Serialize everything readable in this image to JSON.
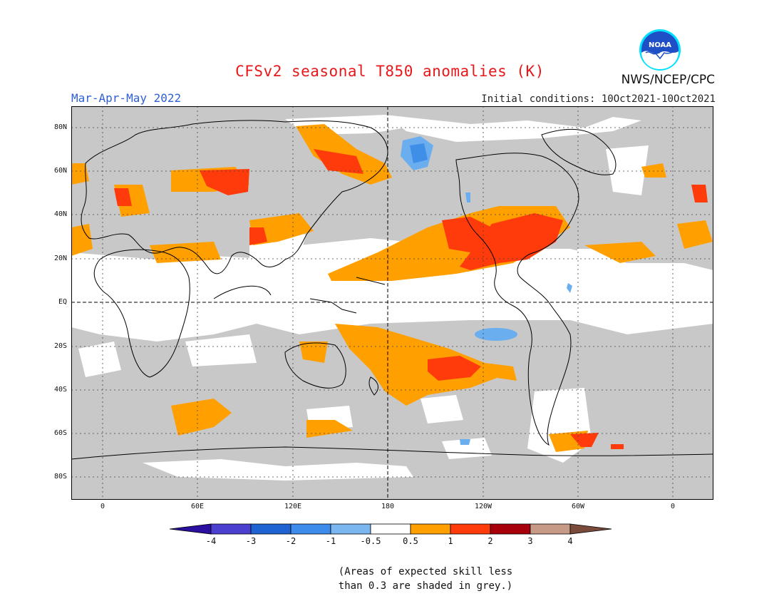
{
  "header": {
    "title": "CFSv2 seasonal T850 anomalies (K)",
    "period": "Mar-Apr-May 2022",
    "initial_conditions": "Initial conditions: 10Oct2021-10Oct2021",
    "organization": "NWS/NCEP/CPC",
    "logo_text": "NOAA"
  },
  "axes": {
    "y_labels": [
      "80N",
      "60N",
      "40N",
      "20N",
      "EQ",
      "20S",
      "40S",
      "60S",
      "80S"
    ],
    "x_labels": [
      "0",
      "60E",
      "120E",
      "180",
      "120W",
      "60W",
      "0"
    ]
  },
  "colorbar": {
    "labels": [
      "-4",
      "-3",
      "-2",
      "-1",
      "-0.5",
      "0.5",
      "1",
      "2",
      "3",
      "4"
    ],
    "colors": [
      "#2a0fa0",
      "#4a3fcf",
      "#1e63d1",
      "#3d8ceb",
      "#7ab7f0",
      "#ffffff",
      "#ff9f00",
      "#ff3a0b",
      "#a8000a",
      "#c79a88",
      "#7a4a3a"
    ]
  },
  "note": {
    "line1": "(Areas of expected skill less",
    "line2": "than 0.3 are shaded in grey.)"
  },
  "colors": {
    "grey_skill": "#c8c8c8",
    "anom_0_5_1": "#ff9f00",
    "anom_1_2": "#ff3a0b",
    "neg_0_5_1": "#6aaef0",
    "neg_1_2": "#3f8ee8"
  }
}
